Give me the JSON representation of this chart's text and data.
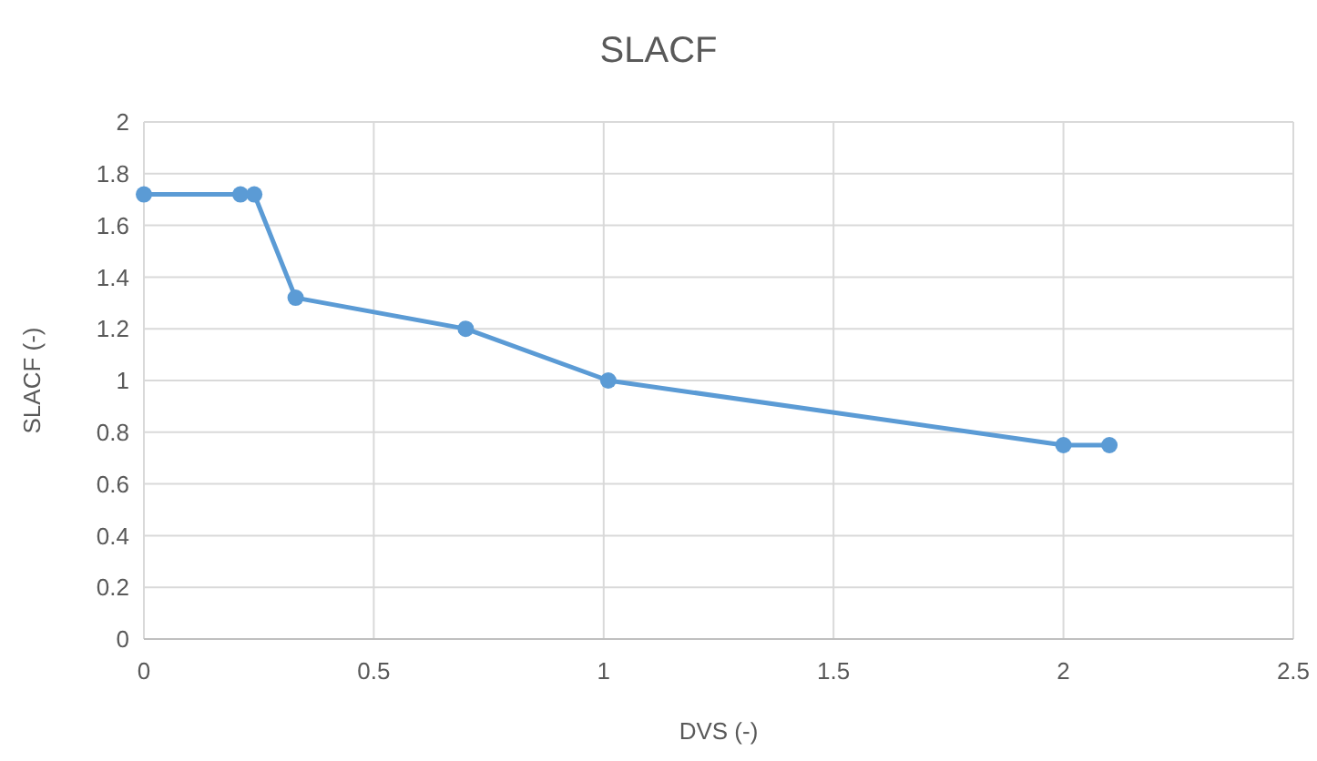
{
  "chart_data": {
    "type": "line",
    "title": "SLACF",
    "xlabel": "DVS (-)",
    "ylabel": "SLACF (-)",
    "x": [
      0,
      0.21,
      0.24,
      0.33,
      0.7,
      1.01,
      2.0,
      2.1
    ],
    "series": [
      {
        "color": "#5b9bd5",
        "values": [
          1.72,
          1.72,
          1.72,
          1.32,
          1.2,
          1.0,
          0.75,
          0.75
        ]
      }
    ],
    "xlim": [
      0,
      2.5
    ],
    "xticks": [
      0,
      0.5,
      1,
      1.5,
      2,
      2.5
    ],
    "ylim": [
      0,
      2
    ],
    "yticks": [
      0,
      0.2,
      0.4,
      0.6,
      0.8,
      1,
      1.2,
      1.4,
      1.6,
      1.8,
      2
    ],
    "grid": true,
    "marker": "circle",
    "line_style": "solid"
  }
}
